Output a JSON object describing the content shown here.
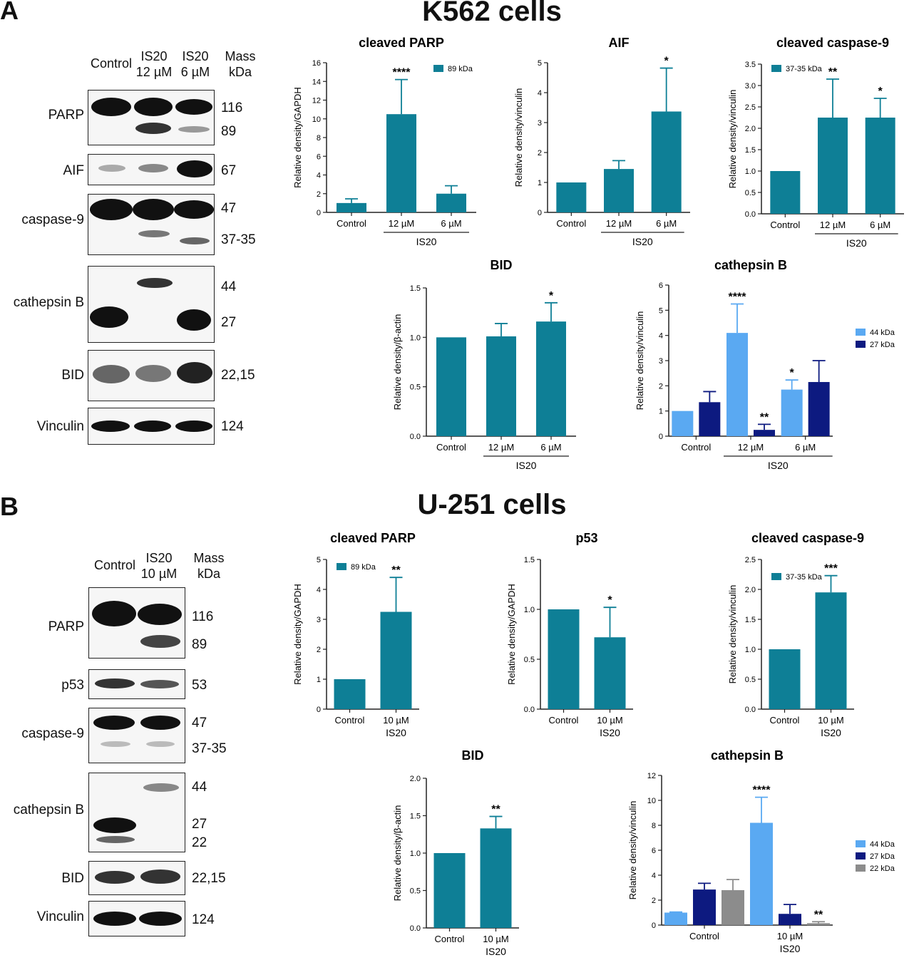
{
  "panelA": {
    "letter": "A",
    "title": "K562 cells",
    "blot": {
      "columns": [
        "Control",
        "IS20\n12 µM",
        "IS20\n6 µM"
      ],
      "mass_header": "Mass\nkDa",
      "rows": [
        {
          "label": "PARP",
          "masses": [
            "116",
            "89"
          ]
        },
        {
          "label": "AIF",
          "masses": [
            "67"
          ]
        },
        {
          "label": "caspase-9",
          "masses": [
            "47",
            "37-35"
          ]
        },
        {
          "label": "cathepsin B",
          "masses": [
            "44",
            "27"
          ]
        },
        {
          "label": "BID",
          "masses": [
            "22,15"
          ]
        },
        {
          "label": "Vinculin",
          "masses": [
            "124"
          ]
        }
      ]
    }
  },
  "panelB": {
    "letter": "B",
    "title": "U-251 cells",
    "blot": {
      "columns": [
        "Control",
        "IS20\n10 µM"
      ],
      "mass_header": "Mass\nkDa",
      "rows": [
        {
          "label": "PARP",
          "masses": [
            "116",
            "89"
          ]
        },
        {
          "label": "p53",
          "masses": [
            "53"
          ]
        },
        {
          "label": "caspase-9",
          "masses": [
            "47",
            "37-35"
          ]
        },
        {
          "label": "cathepsin B",
          "masses": [
            "44",
            "27",
            "22"
          ]
        },
        {
          "label": "BID",
          "masses": [
            "22,15"
          ]
        },
        {
          "label": "Vinculin",
          "masses": [
            "124"
          ]
        }
      ]
    }
  },
  "colors": {
    "teal": "#0e7f96",
    "light_blue": "#5aa9f2",
    "navy": "#0d1a80",
    "gray": "#8c8c8c"
  },
  "chart_data": [
    {
      "id": "a_parp",
      "type": "bar",
      "title": "cleaved PARP",
      "ylabel": "Relative density/GAPDH",
      "ylim": [
        0,
        16
      ],
      "yticks": [
        0,
        2,
        4,
        6,
        8,
        10,
        12,
        14,
        16
      ],
      "categories": [
        "Control",
        "12 µM",
        "6 µM"
      ],
      "group_label": "IS20",
      "series": [
        {
          "name": "89 kDa",
          "color": "#0e7f96",
          "values": [
            1.0,
            10.5,
            2.0
          ],
          "errors": [
            0.45,
            3.7,
            0.85
          ],
          "sig": [
            "",
            "****",
            ""
          ]
        }
      ],
      "legend": "top-right"
    },
    {
      "id": "a_aif",
      "type": "bar",
      "title": "AIF",
      "ylabel": "Relative density/vinculin",
      "ylim": [
        0,
        5
      ],
      "yticks": [
        0,
        1,
        2,
        3,
        4,
        5
      ],
      "categories": [
        "Control",
        "12 µM",
        "6 µM"
      ],
      "group_label": "IS20",
      "series": [
        {
          "name": "",
          "color": "#0e7f96",
          "values": [
            1.0,
            1.45,
            3.37
          ],
          "errors": [
            0,
            0.28,
            1.45
          ],
          "sig": [
            "",
            "",
            "*"
          ]
        }
      ]
    },
    {
      "id": "a_casp9",
      "type": "bar",
      "title": "cleaved caspase-9",
      "ylabel": "Relative density/vinculin",
      "ylim": [
        0,
        3.5
      ],
      "yticks": [
        0,
        0.5,
        1.0,
        1.5,
        2.0,
        2.5,
        3.0,
        3.5
      ],
      "tick_decimals": 1,
      "categories": [
        "Control",
        "12 µM",
        "6 µM"
      ],
      "group_label": "IS20",
      "series": [
        {
          "name": "37-35 kDa",
          "color": "#0e7f96",
          "values": [
            1.0,
            2.25,
            2.25
          ],
          "errors": [
            0,
            0.9,
            0.45
          ],
          "sig": [
            "",
            "**",
            "*"
          ]
        }
      ],
      "legend": "top-left"
    },
    {
      "id": "a_bid",
      "type": "bar",
      "title": "BID",
      "ylabel": "Relative density/β-actin",
      "ylim": [
        0,
        1.5
      ],
      "yticks": [
        0,
        0.5,
        1.0,
        1.5
      ],
      "tick_decimals": 1,
      "categories": [
        "Control",
        "12 µM",
        "6 µM"
      ],
      "group_label": "IS20",
      "series": [
        {
          "name": "",
          "color": "#0e7f96",
          "values": [
            1.0,
            1.01,
            1.16
          ],
          "errors": [
            0,
            0.13,
            0.19
          ],
          "sig": [
            "",
            "",
            "*"
          ]
        }
      ]
    },
    {
      "id": "a_catb",
      "type": "bar",
      "title": "cathepsin B",
      "ylabel": "Relative density/vinculin",
      "ylim": [
        0,
        6
      ],
      "yticks": [
        0,
        1,
        2,
        3,
        4,
        5,
        6
      ],
      "categories": [
        "Control",
        "12 µM",
        "6 µM"
      ],
      "group_label": "IS20",
      "series": [
        {
          "name": "44 kDa",
          "color": "#5aa9f2",
          "values": [
            1.0,
            4.1,
            1.85
          ],
          "errors": [
            0,
            1.15,
            0.38
          ],
          "sig": [
            "",
            "****",
            "*"
          ]
        },
        {
          "name": "27 kDa",
          "color": "#0d1a80",
          "values": [
            1.35,
            0.25,
            2.15
          ],
          "errors": [
            0.42,
            0.22,
            0.85
          ],
          "sig": [
            "",
            "**",
            ""
          ]
        }
      ],
      "legend": "right"
    },
    {
      "id": "b_parp",
      "type": "bar",
      "title": "cleaved PARP",
      "ylabel": "Relative density/GAPDH",
      "ylim": [
        0,
        5
      ],
      "yticks": [
        0,
        1,
        2,
        3,
        4,
        5
      ],
      "categories": [
        "Control",
        "10 µM"
      ],
      "group_label": "IS20",
      "series": [
        {
          "name": "89 kDa",
          "color": "#0e7f96",
          "values": [
            1.0,
            3.25
          ],
          "errors": [
            0,
            1.15
          ],
          "sig": [
            "",
            "**"
          ]
        }
      ],
      "legend": "top-left"
    },
    {
      "id": "b_p53",
      "type": "bar",
      "title": "p53",
      "ylabel": "Relative density/GAPDH",
      "ylim": [
        0,
        1.5
      ],
      "yticks": [
        0,
        0.5,
        1.0,
        1.5
      ],
      "tick_decimals": 1,
      "categories": [
        "Control",
        "10 µM"
      ],
      "group_label": "IS20",
      "series": [
        {
          "name": "",
          "color": "#0e7f96",
          "values": [
            1.0,
            0.72
          ],
          "errors": [
            0,
            0.3
          ],
          "sig": [
            "",
            "*"
          ]
        }
      ]
    },
    {
      "id": "b_casp9",
      "type": "bar",
      "title": "cleaved caspase-9",
      "ylabel": "Relative density/vinculin",
      "ylim": [
        0,
        2.5
      ],
      "yticks": [
        0,
        0.5,
        1.0,
        1.5,
        2.0,
        2.5
      ],
      "tick_decimals": 1,
      "categories": [
        "Control",
        "10 µM"
      ],
      "group_label": "IS20",
      "series": [
        {
          "name": "37-35 kDa",
          "color": "#0e7f96",
          "values": [
            1.0,
            1.95
          ],
          "errors": [
            0,
            0.28
          ],
          "sig": [
            "",
            "***"
          ]
        }
      ],
      "legend": "top-left"
    },
    {
      "id": "b_bid",
      "type": "bar",
      "title": "BID",
      "ylabel": "Relative density/β-actin",
      "ylim": [
        0,
        2.0
      ],
      "yticks": [
        0,
        0.5,
        1.0,
        1.5,
        2.0
      ],
      "tick_decimals": 1,
      "categories": [
        "Control",
        "10 µM"
      ],
      "group_label": "IS20",
      "series": [
        {
          "name": "",
          "color": "#0e7f96",
          "values": [
            1.0,
            1.33
          ],
          "errors": [
            0,
            0.16
          ],
          "sig": [
            "",
            "**"
          ]
        }
      ]
    },
    {
      "id": "b_catb",
      "type": "bar",
      "title": "cathepsin B",
      "ylabel": "Relative density/vinculin",
      "ylim": [
        0,
        12
      ],
      "yticks": [
        0,
        2,
        4,
        6,
        8,
        10,
        12
      ],
      "categories": [
        "Control",
        "10 µM"
      ],
      "group_label": "IS20",
      "series": [
        {
          "name": "44 kDa",
          "color": "#5aa9f2",
          "values": [
            1.0,
            8.2
          ],
          "errors": [
            0.05,
            2.05
          ],
          "sig": [
            "",
            "****"
          ]
        },
        {
          "name": "27 kDa",
          "color": "#0d1a80",
          "values": [
            2.85,
            0.9
          ],
          "errors": [
            0.5,
            0.75
          ],
          "sig": [
            "",
            ""
          ]
        },
        {
          "name": "22 kDa",
          "color": "#8c8c8c",
          "values": [
            2.8,
            0.15
          ],
          "errors": [
            0.85,
            0.12
          ],
          "sig": [
            "",
            "**"
          ]
        }
      ],
      "legend": "right"
    }
  ]
}
